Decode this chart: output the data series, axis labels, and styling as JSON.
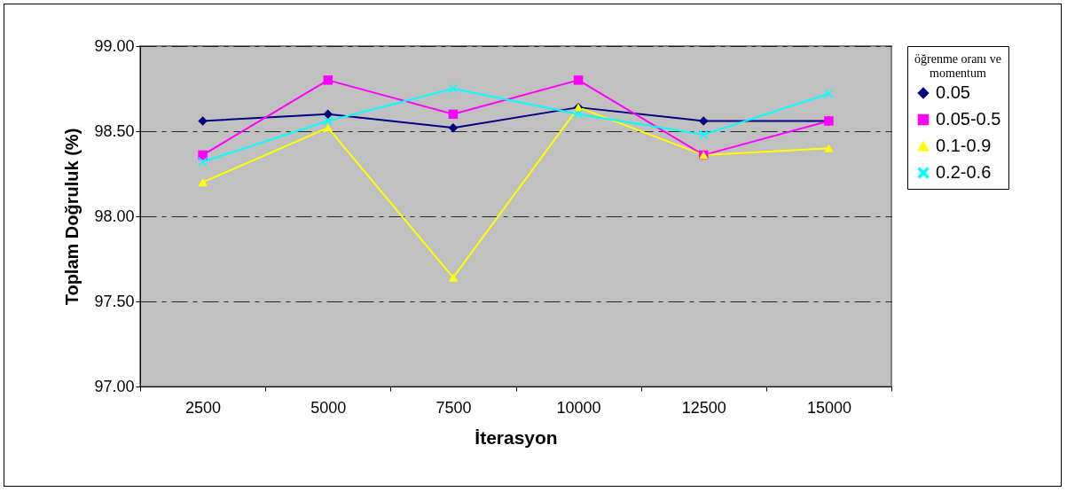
{
  "chart_data": {
    "type": "line",
    "xlabel": "İterasyon",
    "ylabel": "Toplam Doğruluk (%)",
    "legend_title": "öğrenme oranı ve momentum",
    "categories": [
      "2500",
      "5000",
      "7500",
      "10000",
      "12500",
      "15000"
    ],
    "series": [
      {
        "name": "0.05",
        "color": "#000080",
        "marker": "diamond",
        "values": [
          98.56,
          98.6,
          98.52,
          98.64,
          98.56,
          98.56
        ]
      },
      {
        "name": "0.05-0.5",
        "color": "#ff00ff",
        "marker": "square",
        "values": [
          98.36,
          98.8,
          98.6,
          98.8,
          98.36,
          98.56
        ]
      },
      {
        "name": "0.1-0.9",
        "color": "#ffff00",
        "marker": "triangle",
        "values": [
          98.2,
          98.52,
          97.64,
          98.64,
          98.36,
          98.4
        ]
      },
      {
        "name": "0.2-0.6",
        "color": "#00ffff",
        "marker": "cross",
        "values": [
          98.32,
          98.56,
          98.75,
          98.6,
          98.48,
          98.72
        ]
      }
    ],
    "ylim": [
      97.0,
      99.0
    ],
    "yticks": [
      {
        "value": 97,
        "label": "97.00"
      },
      {
        "value": 97.5,
        "label": "97.50"
      },
      {
        "value": 98,
        "label": "98.00"
      },
      {
        "value": 98.5,
        "label": "98.50"
      },
      {
        "value": 99,
        "label": "99.00"
      }
    ],
    "grid": "y",
    "legend": "right"
  }
}
